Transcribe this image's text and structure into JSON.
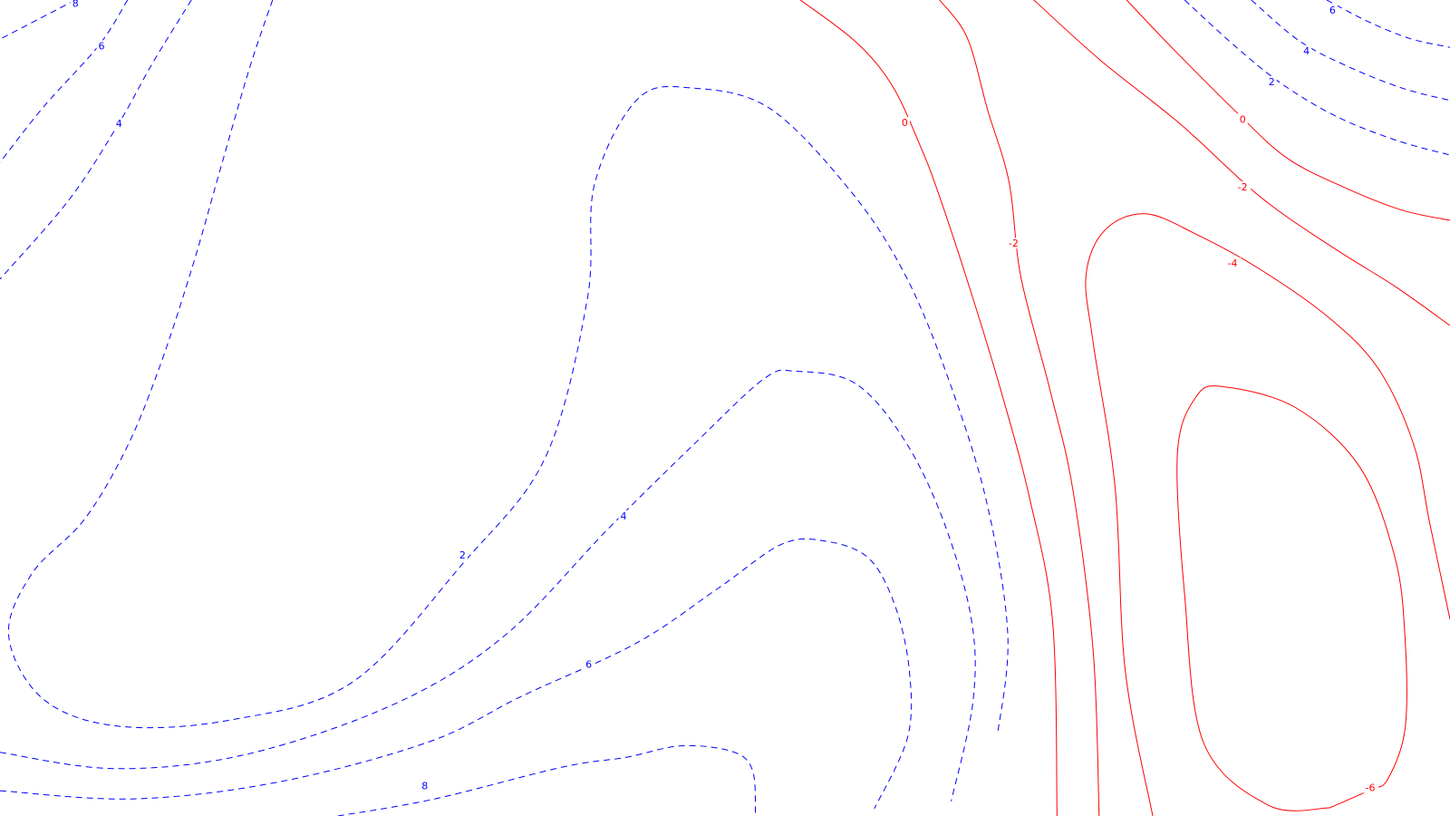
{
  "chart_data": {
    "type": "contour",
    "title": "",
    "xlabel": "",
    "ylabel": "",
    "grid": false,
    "legend": "none",
    "style": {
      "positive_color": "#0000ff",
      "negative_color": "#ff0000",
      "positive_line": "dashed",
      "negative_line": "solid"
    },
    "contours": [
      {
        "level": 8,
        "label": "8",
        "sign": "positive",
        "points": [
          [
            0.052,
            0.0
          ],
          [
            0.0,
            0.048
          ]
        ]
      },
      {
        "level": 6,
        "label": "6",
        "sign": "positive",
        "points": [
          [
            0.088,
            0.0
          ],
          [
            0.068,
            0.056
          ],
          [
            0.03,
            0.131
          ],
          [
            0.0,
            0.199
          ]
        ]
      },
      {
        "level": 4,
        "label": "4",
        "sign": "positive",
        "points": [
          [
            0.132,
            0.0
          ],
          [
            0.105,
            0.078
          ],
          [
            0.082,
            0.151
          ],
          [
            0.048,
            0.244
          ],
          [
            0.0,
            0.342
          ]
        ]
      },
      {
        "level": 2,
        "label": "2",
        "sign": "positive",
        "points": [
          [
            0.188,
            0.0
          ],
          [
            0.172,
            0.084
          ],
          [
            0.152,
            0.207
          ],
          [
            0.133,
            0.325
          ],
          [
            0.11,
            0.45
          ],
          [
            0.087,
            0.55
          ],
          [
            0.058,
            0.637
          ],
          [
            0.022,
            0.703
          ],
          [
            0.006,
            0.779
          ],
          [
            0.03,
            0.857
          ],
          [
            0.082,
            0.89
          ],
          [
            0.16,
            0.882
          ],
          [
            0.243,
            0.836
          ],
          [
            0.319,
            0.691
          ],
          [
            0.376,
            0.561
          ],
          [
            0.405,
            0.367
          ],
          [
            0.41,
            0.226
          ],
          [
            0.44,
            0.121
          ],
          [
            0.478,
            0.108
          ],
          [
            0.531,
            0.133
          ],
          [
            0.587,
            0.235
          ],
          [
            0.624,
            0.336
          ],
          [
            0.653,
            0.459
          ],
          [
            0.68,
            0.612
          ],
          [
            0.695,
            0.777
          ],
          [
            0.688,
            0.9
          ]
        ]
      },
      {
        "level": 4,
        "label": "4",
        "sign": "positive",
        "points": [
          [
            0.0,
            0.922
          ],
          [
            0.08,
            0.942
          ],
          [
            0.171,
            0.924
          ],
          [
            0.273,
            0.862
          ],
          [
            0.348,
            0.779
          ],
          [
            0.42,
            0.647
          ],
          [
            0.48,
            0.542
          ],
          [
            0.527,
            0.464
          ],
          [
            0.549,
            0.455
          ],
          [
            0.59,
            0.47
          ],
          [
            0.624,
            0.54
          ],
          [
            0.651,
            0.64
          ],
          [
            0.67,
            0.76
          ],
          [
            0.671,
            0.86
          ],
          [
            0.656,
            0.982
          ]
        ]
      },
      {
        "level": 6,
        "label": "6",
        "sign": "positive",
        "points": [
          [
            0.0,
            0.969
          ],
          [
            0.093,
            0.979
          ],
          [
            0.193,
            0.958
          ],
          [
            0.296,
            0.909
          ],
          [
            0.36,
            0.853
          ],
          [
            0.439,
            0.788
          ],
          [
            0.496,
            0.72
          ],
          [
            0.539,
            0.667
          ],
          [
            0.569,
            0.663
          ],
          [
            0.599,
            0.684
          ],
          [
            0.617,
            0.741
          ],
          [
            0.627,
            0.82
          ],
          [
            0.626,
            0.903
          ],
          [
            0.603,
            0.991
          ]
        ]
      },
      {
        "level": 8,
        "label": "8",
        "sign": "positive",
        "points": [
          [
            0.233,
            1.0
          ],
          [
            0.3,
            0.979
          ],
          [
            0.388,
            0.94
          ],
          [
            0.432,
            0.928
          ],
          [
            0.47,
            0.914
          ],
          [
            0.505,
            0.921
          ],
          [
            0.519,
            0.944
          ],
          [
            0.521,
            1.0
          ]
        ]
      },
      {
        "level": 0,
        "label": "0",
        "sign": "negative",
        "points": [
          [
            0.552,
            0.0
          ],
          [
            0.59,
            0.051
          ],
          [
            0.615,
            0.104
          ],
          [
            0.634,
            0.176
          ],
          [
            0.648,
            0.241
          ],
          [
            0.67,
            0.36
          ],
          [
            0.69,
            0.477
          ],
          [
            0.71,
            0.61
          ],
          [
            0.726,
            0.763
          ],
          [
            0.729,
            1.0
          ]
        ]
      },
      {
        "level": -2,
        "label": "-2",
        "sign": "negative",
        "points": [
          [
            0.648,
            0.0
          ],
          [
            0.667,
            0.046
          ],
          [
            0.681,
            0.134
          ],
          [
            0.696,
            0.224
          ],
          [
            0.704,
            0.339
          ],
          [
            0.724,
            0.477
          ],
          [
            0.74,
            0.601
          ],
          [
            0.754,
            0.8
          ],
          [
            0.758,
            1.0
          ]
        ]
      },
      {
        "level": -4,
        "label": "-4",
        "sign": "negative",
        "points": [
          [
            0.795,
            1.0
          ],
          [
            0.776,
            0.821
          ],
          [
            0.769,
            0.597
          ],
          [
            0.754,
            0.421
          ],
          [
            0.749,
            0.337
          ],
          [
            0.762,
            0.282
          ],
          [
            0.79,
            0.262
          ],
          [
            0.826,
            0.288
          ],
          [
            0.869,
            0.33
          ],
          [
            0.917,
            0.39
          ],
          [
            0.951,
            0.453
          ],
          [
            0.975,
            0.545
          ],
          [
            0.986,
            0.641
          ],
          [
            1.0,
            0.759
          ]
        ]
      },
      {
        "level": -6,
        "label": "-6",
        "sign": "negative",
        "points": [
          [
            0.917,
            0.99
          ],
          [
            0.875,
            0.987
          ],
          [
            0.83,
            0.91
          ],
          [
            0.817,
            0.729
          ],
          [
            0.812,
            0.556
          ],
          [
            0.825,
            0.486
          ],
          [
            0.844,
            0.474
          ],
          [
            0.894,
            0.5
          ],
          [
            0.938,
            0.573
          ],
          [
            0.962,
            0.683
          ],
          [
            0.969,
            0.782
          ],
          [
            0.969,
            0.893
          ],
          [
            0.957,
            0.955
          ],
          [
            0.945,
            0.968
          ],
          [
            0.917,
            0.99
          ]
        ]
      },
      {
        "level": 0,
        "label": "0",
        "sign": "negative",
        "points": [
          [
            0.777,
            0.0
          ],
          [
            0.808,
            0.058
          ],
          [
            0.853,
            0.138
          ],
          [
            0.887,
            0.193
          ],
          [
            0.925,
            0.228
          ],
          [
            0.966,
            0.257
          ],
          [
            1.0,
            0.27
          ]
        ]
      },
      {
        "level": -2,
        "label": "-2",
        "sign": "negative",
        "points": [
          [
            0.713,
            0.0
          ],
          [
            0.759,
            0.074
          ],
          [
            0.814,
            0.152
          ],
          [
            0.869,
            0.241
          ],
          [
            0.919,
            0.303
          ],
          [
            0.963,
            0.352
          ],
          [
            1.0,
            0.399
          ]
        ]
      },
      {
        "level": 2,
        "label": "2",
        "sign": "positive",
        "points": [
          [
            0.817,
            0.0
          ],
          [
            0.852,
            0.057
          ],
          [
            0.885,
            0.104
          ],
          [
            0.922,
            0.143
          ],
          [
            0.963,
            0.172
          ],
          [
            1.0,
            0.19
          ]
        ]
      },
      {
        "level": 4,
        "label": "4",
        "sign": "positive",
        "points": [
          [
            0.863,
            0.0
          ],
          [
            0.896,
            0.05
          ],
          [
            0.929,
            0.081
          ],
          [
            0.967,
            0.108
          ],
          [
            1.0,
            0.123
          ]
        ]
      },
      {
        "level": 6,
        "label": "6",
        "sign": "positive",
        "points": [
          [
            0.915,
            0.0
          ],
          [
            0.943,
            0.026
          ],
          [
            0.972,
            0.047
          ],
          [
            1.0,
            0.058
          ]
        ]
      }
    ],
    "labels": [
      {
        "text": "8",
        "sign": "positive",
        "at": [
          0.052,
          0.004
        ]
      },
      {
        "text": "6",
        "sign": "positive",
        "at": [
          0.07,
          0.056
        ]
      },
      {
        "text": "4",
        "sign": "positive",
        "at": [
          0.082,
          0.151
        ]
      },
      {
        "text": "2",
        "sign": "positive",
        "at": [
          0.319,
          0.68
        ]
      },
      {
        "text": "4",
        "sign": "positive",
        "at": [
          0.43,
          0.632
        ]
      },
      {
        "text": "6",
        "sign": "positive",
        "at": [
          0.406,
          0.814
        ]
      },
      {
        "text": "8",
        "sign": "positive",
        "at": [
          0.293,
          0.963
        ]
      },
      {
        "text": "0",
        "sign": "negative",
        "at": [
          0.624,
          0.15
        ]
      },
      {
        "text": "-2",
        "sign": "negative",
        "at": [
          0.699,
          0.298
        ]
      },
      {
        "text": "-4",
        "sign": "negative",
        "at": [
          0.85,
          0.322
        ]
      },
      {
        "text": "-6",
        "sign": "negative",
        "at": [
          0.945,
          0.965
        ]
      },
      {
        "text": "0",
        "sign": "negative",
        "at": [
          0.857,
          0.146
        ]
      },
      {
        "text": "-2",
        "sign": "negative",
        "at": [
          0.857,
          0.229
        ]
      },
      {
        "text": "2",
        "sign": "positive",
        "at": [
          0.877,
          0.1
        ]
      },
      {
        "text": "4",
        "sign": "positive",
        "at": [
          0.901,
          0.062
        ]
      },
      {
        "text": "6",
        "sign": "positive",
        "at": [
          0.919,
          0.012
        ]
      }
    ]
  }
}
